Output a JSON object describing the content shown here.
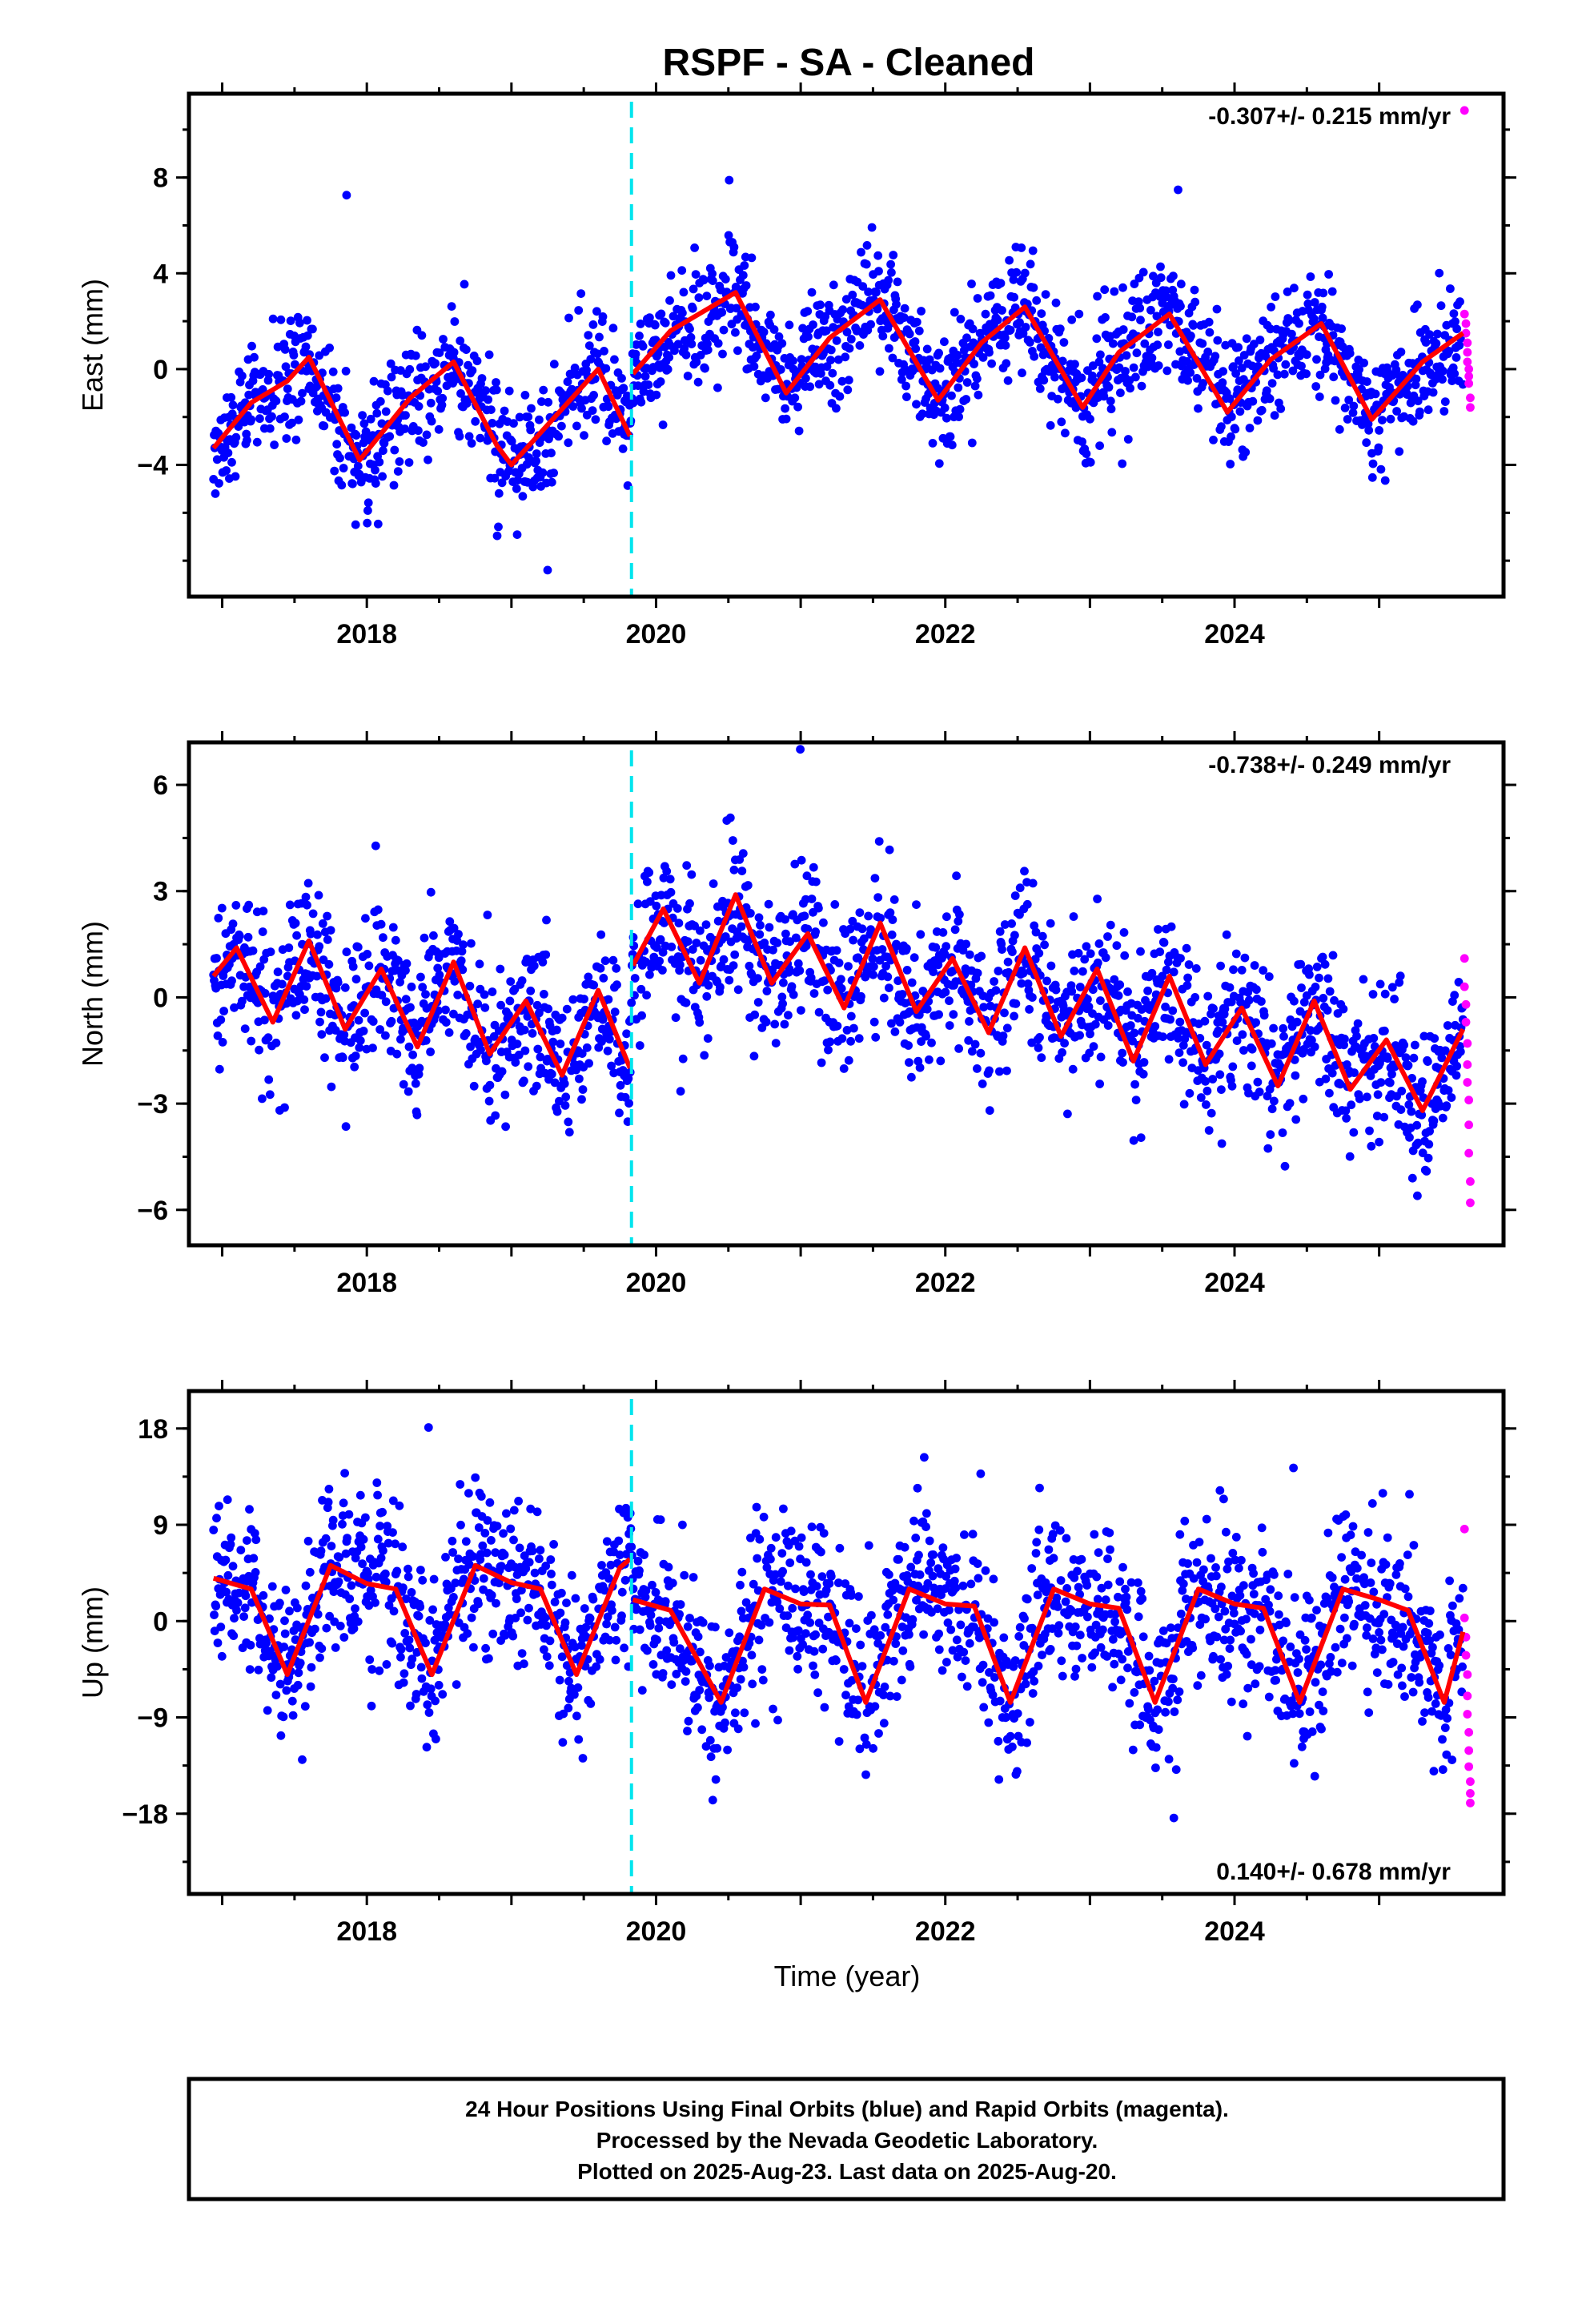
{
  "title": "RSPF  - SA - Cleaned",
  "xlabel": "Time (year)",
  "footer": [
    "24 Hour Positions Using Final Orbits (blue) and Rapid Orbits (magenta).",
    "Processed by the Nevada Geodetic Laboratory.",
    "Plotted on 2025-Aug-23. Last data on 2025-Aug-20."
  ],
  "colors": {
    "final": "#0000ff",
    "rapid": "#ff00ff",
    "model": "#ff0000",
    "event": "#00e5ee",
    "frame": "#000000"
  },
  "chart_data": [
    {
      "type": "scatter",
      "ylabel": "East (mm)",
      "rate_label": "-0.307+/- 0.215 mm/yr",
      "rate_position": "top-right",
      "xlim": [
        2016.77,
        2025.86
      ],
      "ylim": [
        -9.5,
        11.5
      ],
      "x_ticks": [
        2018,
        2020,
        2022,
        2024
      ],
      "y_ticks": [
        -4,
        0,
        4,
        8
      ],
      "event_lines_x": [
        2019.83
      ],
      "series": [
        {
          "role": "final",
          "summary": "daily positions 2016.94–2025.58, seasonal amplitude ~2.5 mm, scatter ~1.3 mm, offset at 2019.83"
        },
        {
          "role": "rapid",
          "x": [
            2025.59,
            2025.59,
            2025.6,
            2025.6,
            2025.61,
            2025.61,
            2025.61,
            2025.62,
            2025.62,
            2025.62,
            2025.63,
            2025.63
          ],
          "y": [
            10.8,
            2.3,
            1.9,
            1.5,
            1.1,
            0.7,
            0.3,
            0.0,
            -0.3,
            -0.6,
            -1.2,
            -1.6
          ]
        },
        {
          "role": "model",
          "x": [
            2016.94,
            2017.2,
            2017.45,
            2017.6,
            2017.95,
            2018.3,
            2018.6,
            2018.9,
            2019.0,
            2019.3,
            2019.6,
            2019.82,
            2019.84,
            2020.1,
            2020.55,
            2020.9,
            2021.2,
            2021.55,
            2021.95,
            2022.25,
            2022.55,
            2022.95,
            2023.2,
            2023.55,
            2023.95,
            2024.25,
            2024.6,
            2024.95,
            2025.3,
            2025.58
          ],
          "y": [
            -3.3,
            -1.4,
            -0.5,
            0.5,
            -3.8,
            -1.2,
            0.3,
            -3.2,
            -4.0,
            -2.0,
            0.0,
            -2.8,
            -0.2,
            1.6,
            3.2,
            -1.0,
            1.3,
            2.9,
            -1.3,
            1.1,
            2.6,
            -1.6,
            0.7,
            2.3,
            -1.8,
            0.4,
            1.9,
            -2.1,
            0.3,
            1.5
          ]
        }
      ]
    },
    {
      "type": "scatter",
      "ylabel": "North (mm)",
      "rate_label": "-0.738+/- 0.249 mm/yr",
      "rate_position": "top-right",
      "xlim": [
        2016.77,
        2025.86
      ],
      "ylim": [
        -7.0,
        7.2
      ],
      "x_ticks": [
        2018,
        2020,
        2022,
        2024
      ],
      "y_ticks": [
        -6,
        -3,
        0,
        3,
        6
      ],
      "event_lines_x": [
        2019.83
      ],
      "series": [
        {
          "role": "final",
          "summary": "daily positions 2016.94–2025.58, seasonal amplitude ~1.5 mm, scatter ~1.1 mm, offset at 2019.83"
        },
        {
          "role": "rapid",
          "x": [
            2025.59,
            2025.59,
            2025.6,
            2025.6,
            2025.61,
            2025.61,
            2025.61,
            2025.62,
            2025.62,
            2025.62,
            2025.63,
            2025.63
          ],
          "y": [
            1.1,
            0.3,
            -0.2,
            -0.7,
            -1.3,
            -1.9,
            -2.4,
            -2.9,
            -3.6,
            -4.4,
            -5.2,
            -5.8
          ]
        },
        {
          "role": "model",
          "x": [
            2016.94,
            2017.1,
            2017.35,
            2017.6,
            2017.85,
            2018.1,
            2018.35,
            2018.6,
            2018.85,
            2019.1,
            2019.35,
            2019.6,
            2019.82,
            2019.84,
            2020.05,
            2020.3,
            2020.55,
            2020.8,
            2021.05,
            2021.3,
            2021.55,
            2021.8,
            2022.05,
            2022.3,
            2022.55,
            2022.8,
            2023.05,
            2023.3,
            2023.55,
            2023.8,
            2024.05,
            2024.3,
            2024.55,
            2024.8,
            2025.05,
            2025.3,
            2025.58
          ],
          "y": [
            0.6,
            1.4,
            -0.7,
            1.6,
            -0.9,
            0.8,
            -1.4,
            1.0,
            -1.6,
            -0.1,
            -2.2,
            0.2,
            -2.0,
            0.9,
            2.5,
            0.4,
            2.9,
            0.4,
            1.8,
            -0.3,
            2.1,
            -0.4,
            1.1,
            -1.0,
            1.4,
            -1.1,
            0.8,
            -1.8,
            0.6,
            -1.9,
            -0.3,
            -2.5,
            -0.1,
            -2.6,
            -1.2,
            -3.2,
            -0.9
          ]
        }
      ]
    },
    {
      "type": "scatter",
      "ylabel": "Up (mm)",
      "rate_label": "0.140+/- 0.678 mm/yr",
      "rate_position": "bottom-right",
      "xlim": [
        2016.77,
        2025.86
      ],
      "ylim": [
        -25.5,
        21.5
      ],
      "x_ticks": [
        2018,
        2020,
        2022,
        2024
      ],
      "y_ticks": [
        -18,
        -9,
        0,
        9,
        18
      ],
      "event_lines_x": [
        2019.83
      ],
      "series": [
        {
          "role": "final",
          "summary": "daily positions 2016.94–2025.58, seasonal amplitude ~5 mm, scatter ~4 mm"
        },
        {
          "role": "rapid",
          "x": [
            2025.59,
            2025.59,
            2025.6,
            2025.6,
            2025.61,
            2025.61,
            2025.61,
            2025.62,
            2025.62,
            2025.62,
            2025.63,
            2025.63,
            2025.63
          ],
          "y": [
            8.6,
            0.3,
            -1.5,
            -3.2,
            -5.0,
            -7.0,
            -8.7,
            -10.4,
            -12.1,
            -13.6,
            -15.0,
            -16.1,
            -17.0
          ]
        },
        {
          "role": "model",
          "x": [
            2016.94,
            2017.2,
            2017.45,
            2017.75,
            2018.0,
            2018.2,
            2018.45,
            2018.75,
            2019.0,
            2019.2,
            2019.45,
            2019.75,
            2019.82,
            2019.84,
            2020.1,
            2020.45,
            2020.75,
            2021.0,
            2021.2,
            2021.45,
            2021.75,
            2022.0,
            2022.2,
            2022.45,
            2022.75,
            2023.0,
            2023.2,
            2023.45,
            2023.75,
            2024.0,
            2024.2,
            2024.45,
            2024.75,
            2025.0,
            2025.2,
            2025.45,
            2025.58
          ],
          "y": [
            4.0,
            3.0,
            -5.0,
            5.2,
            3.5,
            3.0,
            -5.0,
            5.2,
            3.6,
            3.0,
            -5.0,
            5.0,
            5.8,
            2.0,
            1.0,
            -7.6,
            3.0,
            1.6,
            1.5,
            -7.6,
            3.0,
            1.6,
            1.4,
            -7.6,
            3.0,
            1.6,
            1.2,
            -7.6,
            3.0,
            1.6,
            1.2,
            -7.6,
            3.0,
            2.0,
            1.0,
            -7.6,
            -1.0
          ]
        }
      ]
    }
  ]
}
